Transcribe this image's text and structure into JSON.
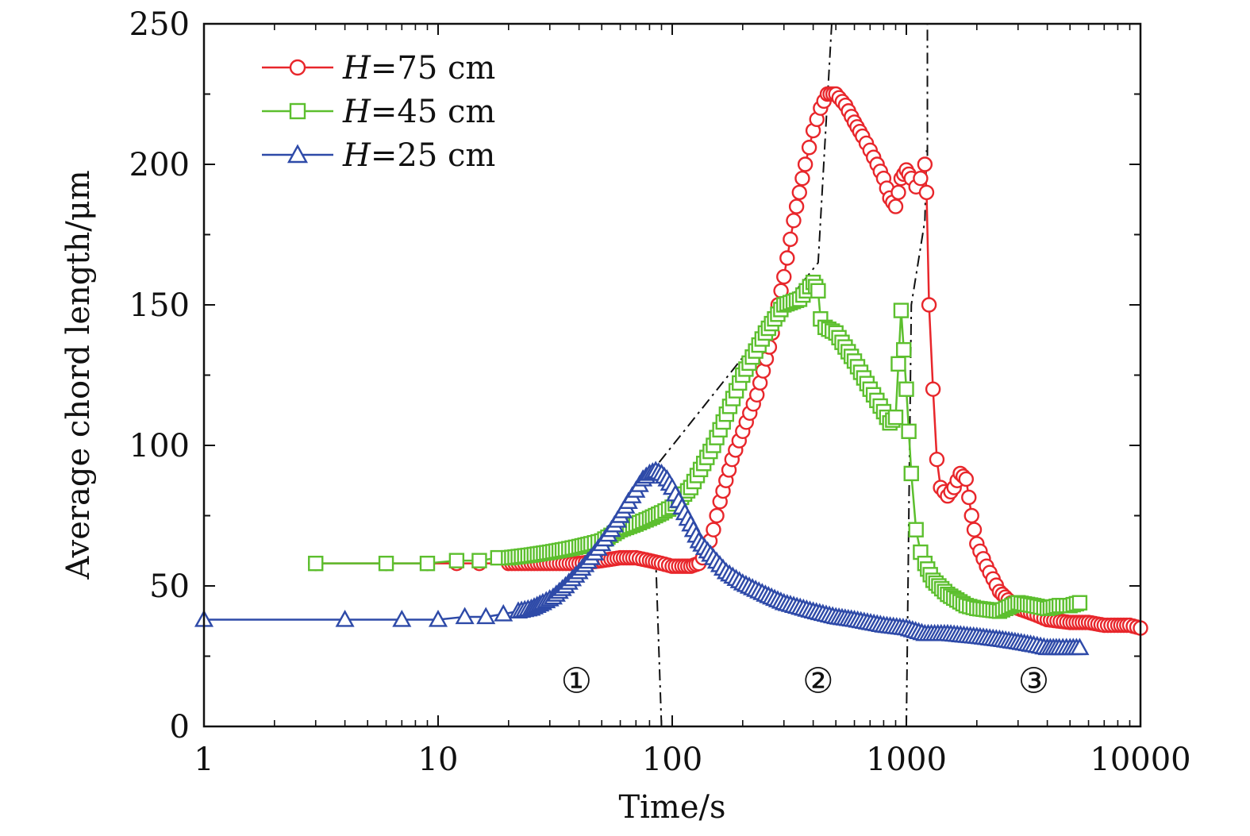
{
  "chart_data": {
    "type": "line",
    "x_scale": "log",
    "xlim": [
      1,
      10000
    ],
    "ylim": [
      0,
      250
    ],
    "xlabel": "Time/s",
    "ylabel": "Average chord length/μm",
    "x_ticks": [
      "1",
      "10",
      "100",
      "1000",
      "10000"
    ],
    "y_ticks": [
      "0",
      "50",
      "100",
      "150",
      "200",
      "250"
    ],
    "legend_position": "top-left",
    "region_labels": [
      "①",
      "②",
      "③"
    ],
    "series": [
      {
        "name": "H=75 cm",
        "name_italic": "H",
        "name_rest": "=75 cm",
        "color": "#e8262b",
        "marker": "circle",
        "x": [
          3,
          6,
          9,
          12,
          15,
          20,
          25,
          30,
          40,
          50,
          60,
          70,
          80,
          90,
          100,
          110,
          120,
          130,
          140,
          150,
          160,
          180,
          200,
          230,
          260,
          300,
          330,
          370,
          400,
          430,
          460,
          500,
          550,
          600,
          650,
          700,
          750,
          800,
          850,
          900,
          950,
          1000,
          1050,
          1100,
          1150,
          1200,
          1220,
          1250,
          1300,
          1350,
          1400,
          1500,
          1600,
          1700,
          1800,
          1900,
          2000,
          2200,
          2500,
          2800,
          3000,
          3500,
          4000,
          5000,
          6000,
          7000,
          8000,
          9000,
          10000
        ],
        "y": [
          58,
          58,
          58,
          58,
          58,
          58,
          58,
          58,
          58,
          59,
          60,
          60,
          59,
          58,
          57,
          57,
          57,
          58,
          62,
          70,
          80,
          95,
          105,
          118,
          135,
          160,
          180,
          200,
          212,
          220,
          225,
          225,
          221,
          215,
          210,
          205,
          200,
          195,
          188,
          185,
          195,
          198,
          195,
          192,
          195,
          200,
          190,
          150,
          120,
          95,
          85,
          82,
          85,
          90,
          88,
          75,
          65,
          57,
          48,
          44,
          42,
          40,
          38,
          37,
          37,
          36,
          36,
          36,
          35
        ]
      },
      {
        "name": "H=45 cm",
        "name_italic": "H",
        "name_rest": "=45 cm",
        "color": "#5cbf2e",
        "marker": "square",
        "x": [
          3,
          6,
          9,
          12,
          15,
          18,
          20,
          25,
          30,
          35,
          40,
          45,
          50,
          60,
          70,
          80,
          90,
          100,
          120,
          150,
          200,
          250,
          300,
          350,
          400,
          420,
          430,
          450,
          500,
          600,
          700,
          800,
          850,
          900,
          950,
          1000,
          1050,
          1100,
          1150,
          1200,
          1300,
          1500,
          1800,
          2000,
          2500,
          3000,
          3500,
          4000,
          4500,
          5000,
          5500
        ],
        "y": [
          58,
          58,
          58,
          59,
          59,
          60,
          60,
          61,
          62,
          63,
          64,
          65,
          66,
          70,
          72,
          74,
          76,
          78,
          85,
          100,
          125,
          140,
          150,
          152,
          158,
          155,
          145,
          142,
          140,
          130,
          120,
          112,
          108,
          110,
          148,
          120,
          90,
          70,
          62,
          58,
          52,
          47,
          43,
          42,
          41,
          44,
          43,
          42,
          43,
          43,
          44
        ]
      },
      {
        "name": "H=25 cm",
        "name_italic": "H",
        "name_rest": "=25 cm",
        "color": "#2e4aa8",
        "marker": "triangle",
        "x": [
          1,
          4,
          7,
          10,
          13,
          16,
          19,
          22,
          25,
          28,
          31,
          35,
          40,
          45,
          50,
          55,
          60,
          65,
          70,
          75,
          80,
          85,
          90,
          95,
          100,
          110,
          120,
          130,
          150,
          170,
          200,
          250,
          300,
          400,
          500,
          600,
          800,
          1000,
          1200,
          1500,
          2000,
          2500,
          3000,
          3500,
          4000,
          4500,
          5000,
          5500
        ],
        "y": [
          38,
          38,
          38,
          38,
          39,
          39,
          40,
          41,
          42,
          44,
          46,
          50,
          55,
          60,
          65,
          70,
          75,
          80,
          84,
          88,
          90,
          91,
          90,
          88,
          85,
          78,
          72,
          66,
          60,
          55,
          51,
          47,
          44,
          41,
          39,
          38,
          36,
          35,
          33,
          33,
          32,
          31,
          30,
          29,
          28,
          28,
          28,
          28
        ]
      }
    ],
    "guide_lines": [
      {
        "x": [
          88,
          420,
          480
        ],
        "y": [
          94,
          165,
          250
        ]
      },
      {
        "x": [
          90,
          85
        ],
        "y": [
          0,
          60
        ]
      },
      {
        "x": [
          1000,
          1050,
          1200,
          1220
        ],
        "y": [
          0,
          150,
          180,
          205
        ]
      },
      {
        "x": [
          1230,
          1230
        ],
        "y": [
          203,
          250
        ]
      }
    ]
  }
}
